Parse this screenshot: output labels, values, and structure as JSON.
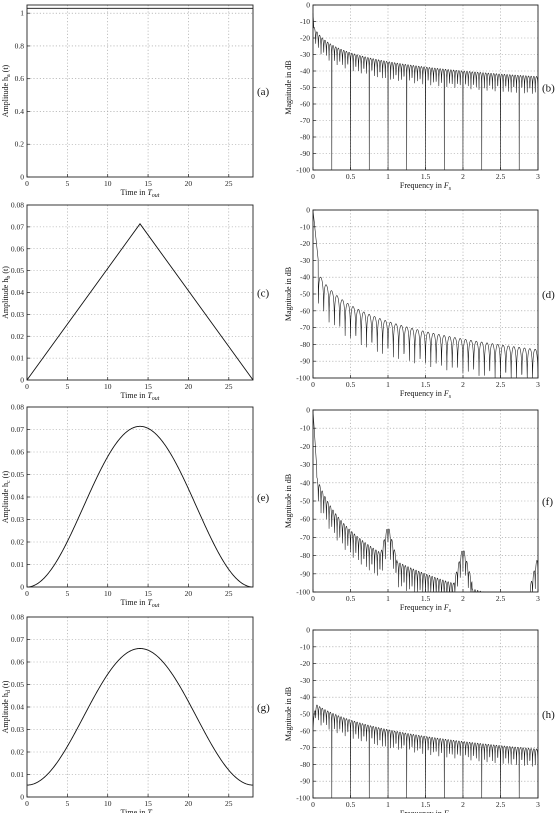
{
  "figure": {
    "panels": [
      {
        "id": "a",
        "label": "(a)",
        "xlabel": "Time in ",
        "xlabel_sub": "out",
        "ylabel": "Amplitude  h",
        "ylabel_sub": "a",
        "ylabel_tail": "(t)"
      },
      {
        "id": "b",
        "label": "(b)",
        "xlabel": "Frequency in ",
        "xlabel_sub": "s",
        "ylabel": "Magnitude in dB"
      },
      {
        "id": "c",
        "label": "(c)",
        "xlabel": "Time in ",
        "xlabel_sub": "out",
        "ylabel": "Amplitude  h",
        "ylabel_sub": "b",
        "ylabel_tail": "(t)"
      },
      {
        "id": "d",
        "label": "(d)",
        "xlabel": "Frequency in ",
        "xlabel_sub": "s",
        "ylabel": "Magnitude in dB"
      },
      {
        "id": "e",
        "label": "(e)",
        "xlabel": "Time in ",
        "xlabel_sub": "out",
        "ylabel": "Amplitude  h",
        "ylabel_sub": "c",
        "ylabel_tail": "(t)"
      },
      {
        "id": "f",
        "label": "(f)",
        "xlabel": "Frequency in ",
        "xlabel_sub": "s",
        "ylabel": "Magnitude in dB"
      },
      {
        "id": "g",
        "label": "(g)",
        "xlabel": "Time in ",
        "xlabel_sub": "out",
        "ylabel": "Amplitude  h",
        "ylabel_sub": "d",
        "ylabel_tail": "(t)"
      },
      {
        "id": "h",
        "label": "(h)",
        "xlabel": "Frequency in ",
        "xlabel_sub": "s",
        "ylabel": "Magnitude in dB"
      }
    ],
    "x_italic": {
      "time": "T",
      "freq": "F"
    }
  },
  "chart_data": [
    {
      "id": "a",
      "type": "line",
      "grid": true,
      "xlim": [
        0,
        28
      ],
      "ylim": [
        0,
        1.05
      ],
      "xticks": [
        0,
        5,
        10,
        15,
        20,
        25
      ],
      "yticks": [
        0,
        0.2,
        0.4,
        0.6,
        0.8,
        1
      ],
      "ytick_labels": [
        "0",
        "0.2",
        "0.4",
        "0.6",
        "0.8",
        "1"
      ],
      "series": [
        {
          "shape": "rect",
          "x": [
            0,
            28
          ],
          "y": [
            1.03,
            1.03
          ]
        }
      ]
    },
    {
      "id": "b",
      "type": "line",
      "grid": true,
      "xlim": [
        0,
        3
      ],
      "ylim": [
        -100,
        0
      ],
      "xticks": [
        0,
        0.5,
        1,
        1.5,
        2,
        2.5,
        3
      ],
      "xtick_labels": [
        "0",
        "0.5",
        "1",
        "1.5",
        "2",
        "2.5",
        "3"
      ],
      "yticks": [
        0,
        -10,
        -20,
        -30,
        -40,
        -50,
        -60,
        -70,
        -80,
        -90,
        -100
      ],
      "spectrum": {
        "kind": "rect",
        "peak_db": -12,
        "lobe_freq": 0.0357,
        "nulls_period": 0.25,
        "floor_db": -100
      }
    },
    {
      "id": "c",
      "type": "line",
      "grid": true,
      "xlim": [
        0,
        28
      ],
      "ylim": [
        0,
        0.08
      ],
      "xticks": [
        0,
        5,
        10,
        15,
        20,
        25
      ],
      "yticks": [
        0,
        0.01,
        0.02,
        0.03,
        0.04,
        0.05,
        0.06,
        0.07,
        0.08
      ],
      "ytick_labels": [
        "0",
        "0.01",
        "0.02",
        "0.03",
        "0.04",
        "0.05",
        "0.06",
        "0.07",
        "0.08"
      ],
      "series": [
        {
          "shape": "triangle",
          "x": [
            0,
            14,
            28
          ],
          "y": [
            0,
            0.0714,
            0
          ]
        }
      ]
    },
    {
      "id": "d",
      "type": "line",
      "grid": true,
      "xlim": [
        0,
        3
      ],
      "ylim": [
        -100,
        0
      ],
      "xticks": [
        0,
        0.5,
        1,
        1.5,
        2,
        2.5,
        3
      ],
      "xtick_labels": [
        "0",
        "0.5",
        "1",
        "1.5",
        "2",
        "2.5",
        "3"
      ],
      "yticks": [
        0,
        -10,
        -20,
        -30,
        -40,
        -50,
        -60,
        -70,
        -80,
        -90,
        -100
      ],
      "spectrum": {
        "kind": "triangle",
        "peak_db": 0,
        "lobe_freq": 0.0714,
        "floor_db": -100
      }
    },
    {
      "id": "e",
      "type": "line",
      "grid": true,
      "xlim": [
        0,
        28
      ],
      "ylim": [
        0,
        0.08
      ],
      "xticks": [
        0,
        5,
        10,
        15,
        20,
        25
      ],
      "yticks": [
        0,
        0.01,
        0.02,
        0.03,
        0.04,
        0.05,
        0.06,
        0.07,
        0.08
      ],
      "ytick_labels": [
        "0",
        "0.01",
        "0.02",
        "0.03",
        "0.04",
        "0.05",
        "0.06",
        "0.07",
        "0.08"
      ],
      "series": [
        {
          "shape": "hann",
          "x": [
            0,
            14,
            28
          ],
          "y": [
            0,
            0.0714,
            0
          ]
        }
      ]
    },
    {
      "id": "f",
      "type": "line",
      "grid": true,
      "xlim": [
        0,
        3
      ],
      "ylim": [
        -100,
        0
      ],
      "xticks": [
        0,
        0.5,
        1,
        1.5,
        2,
        2.5,
        3
      ],
      "xtick_labels": [
        "0",
        "0.5",
        "1",
        "1.5",
        "2",
        "2.5",
        "3"
      ],
      "yticks": [
        0,
        -10,
        -20,
        -30,
        -40,
        -50,
        -60,
        -70,
        -80,
        -90,
        -100
      ],
      "spectrum": {
        "kind": "hann",
        "peak_db": 0,
        "lobe_freq": 0.0357,
        "bumps": [
          {
            "f": 1,
            "db": -63
          },
          {
            "f": 2,
            "db": -75
          },
          {
            "f": 3,
            "db": -80
          }
        ],
        "floor_db": -100
      }
    },
    {
      "id": "g",
      "type": "line",
      "grid": true,
      "xlim": [
        0,
        28
      ],
      "ylim": [
        0,
        0.08
      ],
      "xticks": [
        0,
        5,
        10,
        15,
        20,
        25
      ],
      "yticks": [
        0,
        0.01,
        0.02,
        0.03,
        0.04,
        0.05,
        0.06,
        0.07,
        0.08
      ],
      "ytick_labels": [
        "0",
        "0.01",
        "0.02",
        "0.03",
        "0.04",
        "0.05",
        "0.06",
        "0.07",
        "0.08"
      ],
      "series": [
        {
          "shape": "hamming",
          "x": [
            0,
            14,
            28
          ],
          "y": [
            0.0053,
            0.066,
            0.0053
          ]
        }
      ]
    },
    {
      "id": "h",
      "type": "line",
      "grid": true,
      "xlim": [
        0,
        3
      ],
      "ylim": [
        -100,
        0
      ],
      "xticks": [
        0,
        0.5,
        1,
        1.5,
        2,
        2.5,
        3
      ],
      "xtick_labels": [
        "0",
        "0.5",
        "1",
        "1.5",
        "2",
        "2.5",
        "3"
      ],
      "yticks": [
        0,
        -10,
        -20,
        -30,
        -40,
        -50,
        -60,
        -70,
        -80,
        -90,
        -100
      ],
      "spectrum": {
        "kind": "hamming",
        "peak_db": -43,
        "lobe_freq": 0.0357,
        "nulls_period": 0.25,
        "floor_db": -100
      }
    }
  ]
}
